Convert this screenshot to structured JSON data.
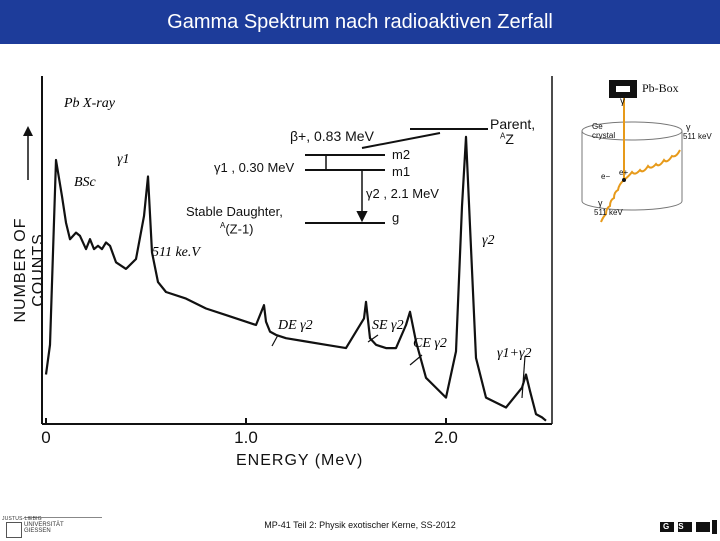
{
  "slide": {
    "title": "Gamma Spektrum nach radioaktiven Zerfall",
    "footer": "MP-41 Teil 2: Physik exotischer Kerne, SS-2012"
  },
  "logos": {
    "university": {
      "line1": "JUSTUS-LIEBIG",
      "line2": "UNIVERSITÄT",
      "line3": "GIESSEN"
    },
    "institute": "GSI"
  },
  "inset": {
    "pb_box_label": "Pb-Box",
    "ge_crystal_label": "Ge crystal",
    "gamma_symbol": "γ",
    "positron": "e+",
    "electron": "e−",
    "energy_511_top": "511 keV",
    "energy_511_bottom": "511 keV"
  },
  "decay_scheme": {
    "parent_label": "Parent,",
    "parent_nucleus": "Z",
    "parent_mass": "A",
    "beta_label": "β+, 0.83 MeV",
    "gamma1_label": "γ1 , 0.30 MeV",
    "m2_label": "m2",
    "m1_label": "m1",
    "gamma2_label": "γ2 , 2.1 MeV",
    "g_label": "g",
    "daughter_line1": "Stable Daughter,",
    "daughter_line2": "(Z-1)",
    "daughter_mass": "A"
  },
  "annotations": {
    "pb_xray": "Pb X-ray",
    "gamma1": "γ1",
    "bsc": "BSc",
    "e511": "511 ke.V",
    "gamma2": "γ2",
    "de": "DE γ2",
    "se": "SE γ2",
    "ce": "CE γ2",
    "sum": "γ1+γ2"
  },
  "chart_data": {
    "type": "line",
    "title": "",
    "xlabel": "ENERGY (MeV)",
    "ylabel": "NUMBER OF COUNTS",
    "x_ticks": [
      "0",
      "1.0",
      "2.0"
    ],
    "xlim": [
      0,
      2.5
    ],
    "grid": false,
    "series": [
      {
        "x": [
          0.0,
          0.02,
          0.05,
          0.08,
          0.1,
          0.12,
          0.15,
          0.17,
          0.2,
          0.22,
          0.24,
          0.26,
          0.28,
          0.3,
          0.32,
          0.35,
          0.4,
          0.45,
          0.49,
          0.51,
          0.53,
          0.56,
          0.6,
          0.7,
          0.8,
          0.9,
          1.0,
          1.05,
          1.09,
          1.1,
          1.12,
          1.15,
          1.2,
          1.3,
          1.4,
          1.5,
          1.59,
          1.6,
          1.62,
          1.65,
          1.7,
          1.75,
          1.8,
          1.82,
          1.85,
          1.9,
          2.0,
          2.05,
          2.08,
          2.1,
          2.12,
          2.15,
          2.2,
          2.3,
          2.38,
          2.4,
          2.42,
          2.45,
          2.48,
          2.5
        ],
        "y": [
          15,
          24,
          80,
          69,
          61,
          56,
          58,
          57,
          53,
          56,
          53,
          54,
          53,
          55,
          54,
          49,
          47,
          50,
          63,
          75,
          52,
          43,
          40,
          38,
          35,
          33,
          31,
          30,
          36,
          31,
          28,
          27,
          26,
          25,
          24,
          23,
          32,
          37,
          26,
          24,
          23,
          23,
          30,
          34,
          25,
          14,
          8,
          22,
          66,
          87,
          60,
          20,
          8,
          5,
          11,
          15,
          10,
          3,
          2,
          1
        ]
      }
    ]
  }
}
